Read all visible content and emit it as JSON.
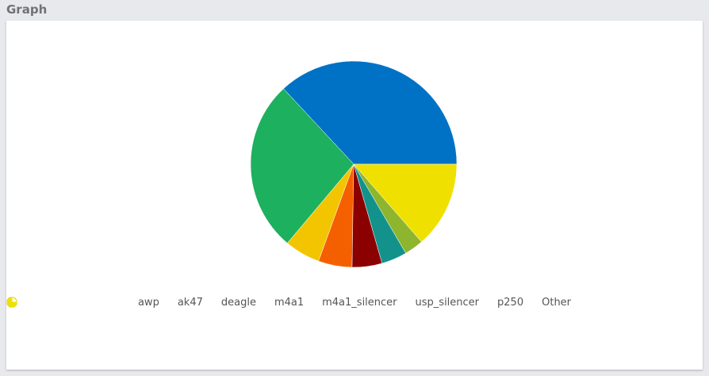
{
  "panel": {
    "title": "Graph"
  },
  "chart_data": {
    "type": "pie",
    "categories": [
      "awp",
      "ak47",
      "deagle",
      "m4a1",
      "m4a1_silencer",
      "usp_silencer",
      "p250",
      "Other"
    ],
    "values": [
      37,
      27,
      5.6,
      5.3,
      4.7,
      4,
      3,
      13.6
    ],
    "colors": [
      "#0072c6",
      "#1db05e",
      "#f2c500",
      "#f46000",
      "#8b0000",
      "#13928c",
      "#8db52e",
      "#f0e000"
    ],
    "legend": "bottom"
  }
}
